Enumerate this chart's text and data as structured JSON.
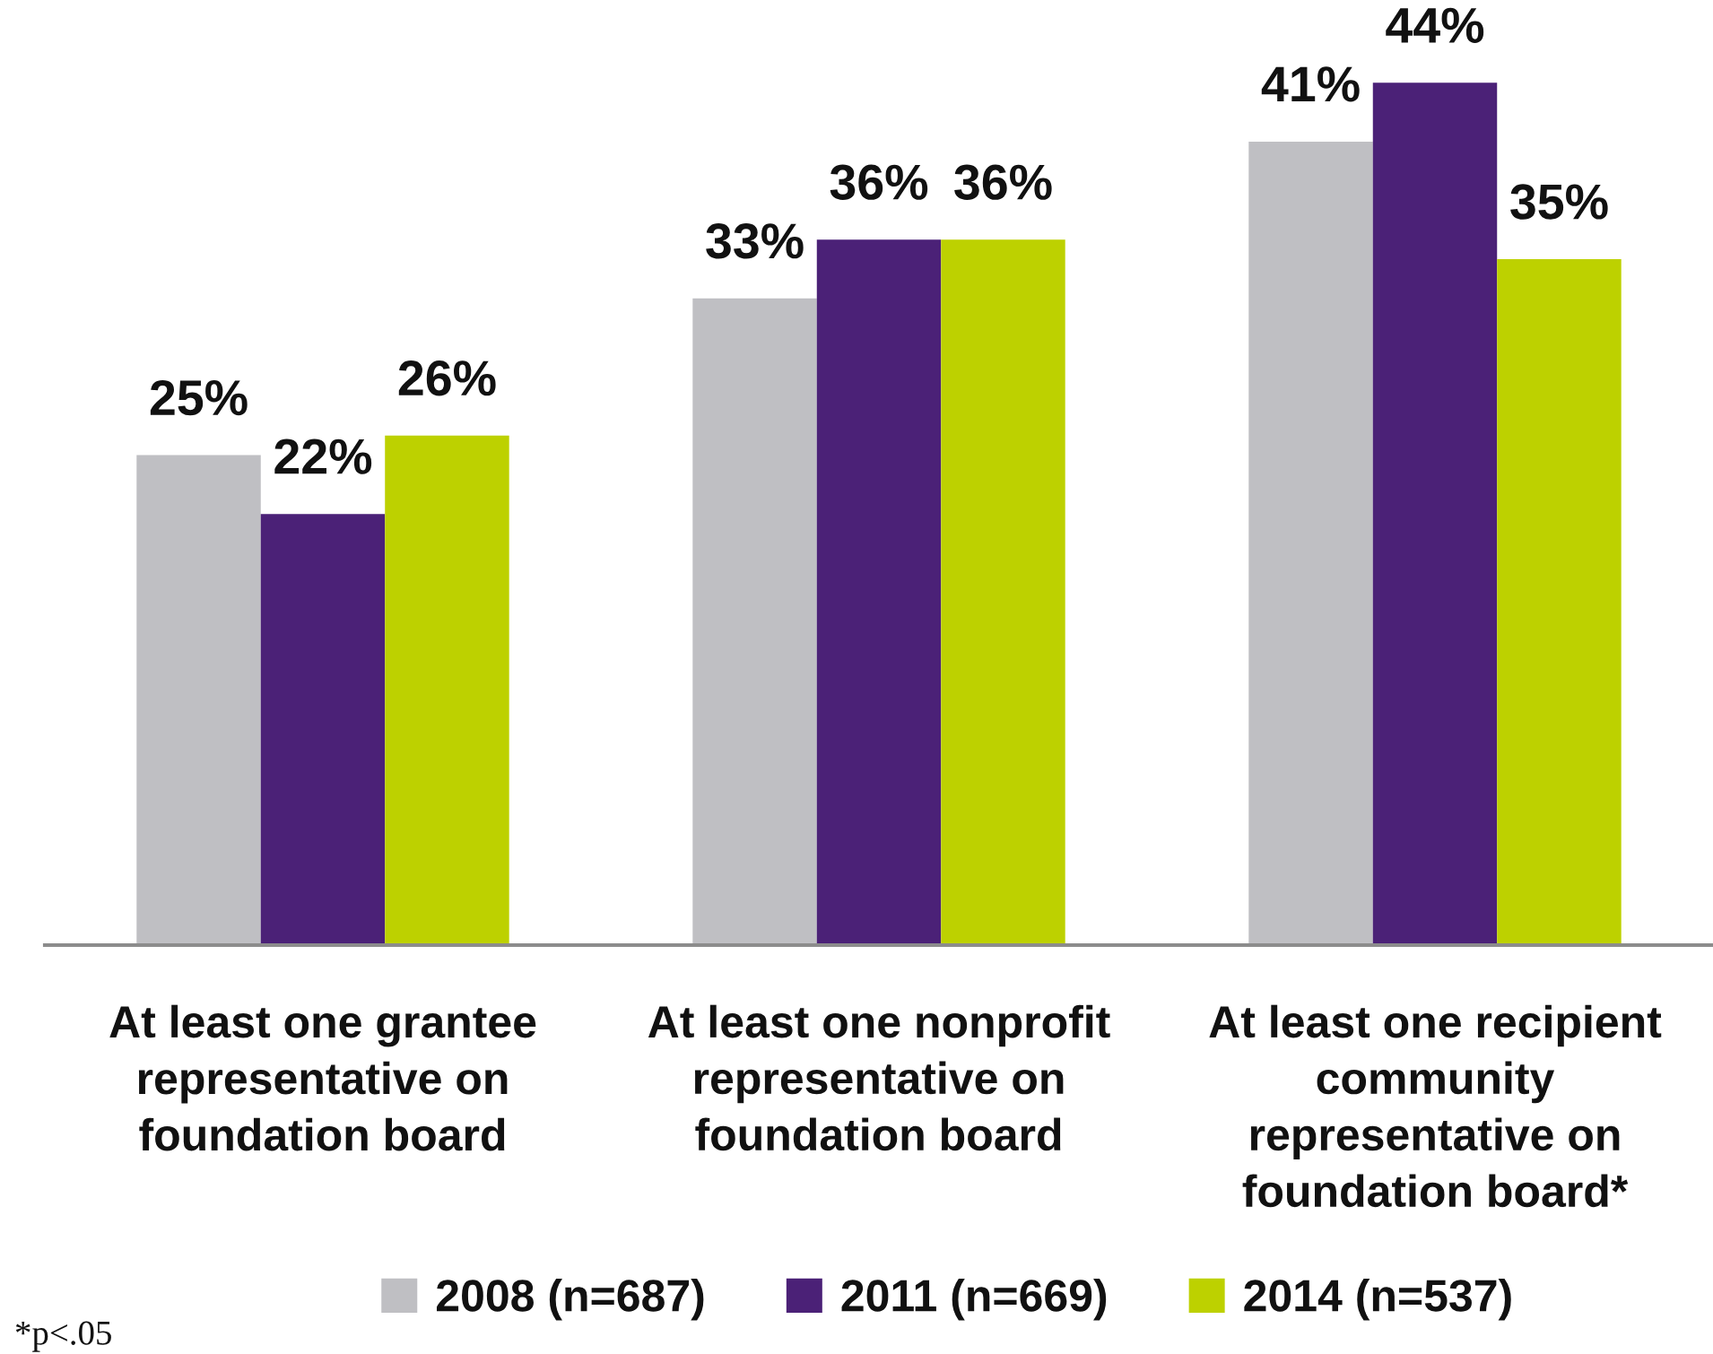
{
  "chart_data": {
    "type": "bar",
    "categories": [
      "At least one grantee\nrepresentative on\nfoundation board",
      "At least one nonprofit\nrepresentative on\nfoundation board",
      "At least one recipient\ncommunity\nrepresentative on\nfoundation board*"
    ],
    "series": [
      {
        "name": "2008 (n=687)",
        "color": "#bfbfc3",
        "values": [
          25,
          33,
          41
        ],
        "value_labels": [
          "25%",
          "33%",
          "41%"
        ]
      },
      {
        "name": "2011 (n=669)",
        "color": "#4b2177",
        "values": [
          22,
          36,
          44
        ],
        "value_labels": [
          "22%",
          "36%",
          "44%"
        ]
      },
      {
        "name": "2014 (n=537)",
        "color": "#bdd100",
        "values": [
          26,
          36,
          35
        ],
        "value_labels": [
          "26%",
          "36%",
          "35%"
        ]
      }
    ],
    "annotations": [
      "*p<.05"
    ],
    "legend": "bottom"
  }
}
